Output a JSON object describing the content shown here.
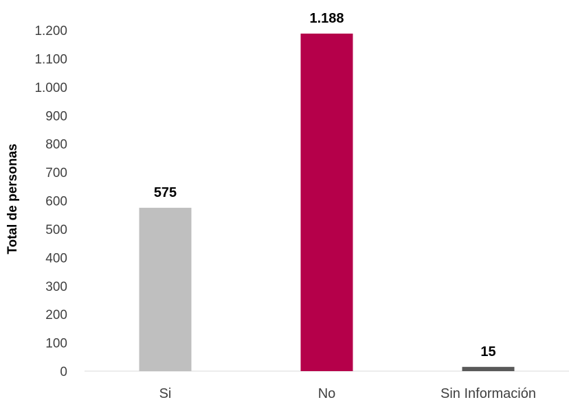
{
  "chart_data": {
    "type": "bar",
    "categories": [
      "Si",
      "No",
      "Sin Información"
    ],
    "values": [
      575,
      1188,
      15
    ],
    "data_labels": [
      "575",
      "1.188",
      "15"
    ],
    "colors": [
      "#bfbfbf",
      "#b5004a",
      "#595959"
    ],
    "ylabel": "Total de personas",
    "xlabel": "",
    "title": "",
    "ylim": [
      0,
      1200
    ],
    "yticks": [
      0,
      100,
      200,
      300,
      400,
      500,
      600,
      700,
      800,
      900,
      1000,
      1100,
      1200
    ],
    "ytick_labels": [
      "0",
      "100",
      "200",
      "300",
      "400",
      "500",
      "600",
      "700",
      "800",
      "900",
      "1.000",
      "1.100",
      "1.200"
    ],
    "grid": false,
    "legend": "none"
  }
}
